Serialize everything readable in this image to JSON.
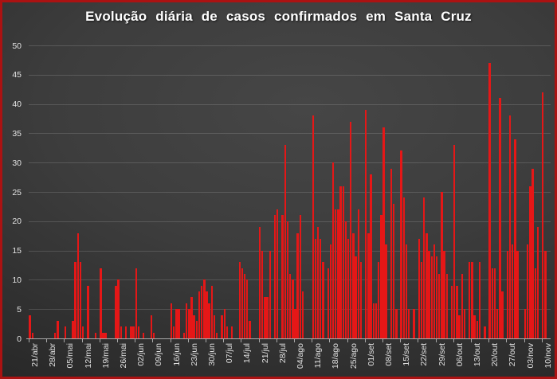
{
  "title": "Evolução diária de casos confirmados em Santa Cruz",
  "colors": {
    "border": "#ab1212",
    "bar": "#e51717",
    "background_center": "#464646",
    "background_edge": "#1d1d1d",
    "grid": "rgba(255,255,255,0.15)",
    "axis": "#a9a9a9",
    "tick_text": "#e0e0e0",
    "title_text": "#ffffff"
  },
  "chart_data": {
    "type": "bar",
    "title": "Evolução diária de casos confirmados em Santa Cruz",
    "xlabel": "",
    "ylabel": "",
    "ylim": [
      0,
      50
    ],
    "y_ticks": [
      0,
      5,
      10,
      15,
      20,
      25,
      30,
      35,
      40,
      45,
      50
    ],
    "grid": "horizontal",
    "legend": "none",
    "x_unit": "day",
    "x_tick_interval_days": 7,
    "x_tick_labels": [
      "21/abr",
      "28/abr",
      "05/mai",
      "12/mai",
      "19/mai",
      "26/mai",
      "02/jun",
      "09/jun",
      "16/jun",
      "23/jun",
      "30/jun",
      "07/jul",
      "14/jul",
      "21/jul",
      "28/jul",
      "04/ago",
      "11/ago",
      "18/ago",
      "25/ago",
      "01/set",
      "08/set",
      "15/set",
      "22/set",
      "29/set",
      "06/out",
      "13/out",
      "20/out",
      "27/out",
      "03/nov",
      "10/nov"
    ],
    "start_label": "21/abr",
    "end_label": "10/nov",
    "values": [
      4,
      1,
      0,
      0,
      0,
      0,
      0,
      0,
      0,
      0,
      1,
      3,
      0,
      0,
      2,
      0,
      0,
      3,
      13,
      18,
      13,
      2,
      0,
      9,
      0,
      0,
      1,
      0,
      12,
      1,
      1,
      0,
      0,
      0,
      9,
      10,
      2,
      0,
      2,
      0,
      2,
      2,
      12,
      2,
      0,
      1,
      0,
      0,
      4,
      1,
      0,
      0,
      0,
      0,
      0,
      0,
      6,
      2,
      5,
      5,
      0,
      1,
      6,
      5,
      7,
      4,
      3,
      8,
      9,
      10,
      8,
      6,
      9,
      4,
      1,
      0,
      4,
      5,
      2,
      0,
      2,
      0,
      0,
      13,
      12,
      11,
      10,
      3,
      0,
      0,
      0,
      19,
      15,
      7,
      7,
      15,
      0,
      21,
      22,
      0,
      21,
      33,
      20,
      11,
      10,
      5,
      18,
      21,
      8,
      0,
      0,
      0,
      38,
      17,
      19,
      17,
      13,
      0,
      12,
      16,
      30,
      22,
      22,
      26,
      26,
      20,
      17,
      37,
      18,
      14,
      22,
      13,
      0,
      39,
      18,
      28,
      6,
      6,
      13,
      21,
      36,
      16,
      0,
      29,
      23,
      5,
      0,
      32,
      24,
      16,
      5,
      0,
      5,
      0,
      17,
      13,
      24,
      18,
      15,
      14,
      16,
      14,
      11,
      25,
      15,
      11,
      0,
      9,
      33,
      9,
      4,
      11,
      5,
      0,
      13,
      13,
      4,
      3,
      13,
      0,
      2,
      0,
      47,
      12,
      12,
      5,
      41,
      8,
      0,
      15,
      38,
      16,
      34,
      15,
      0,
      0,
      5,
      16,
      26,
      29,
      12,
      19,
      0,
      42,
      15
    ]
  }
}
